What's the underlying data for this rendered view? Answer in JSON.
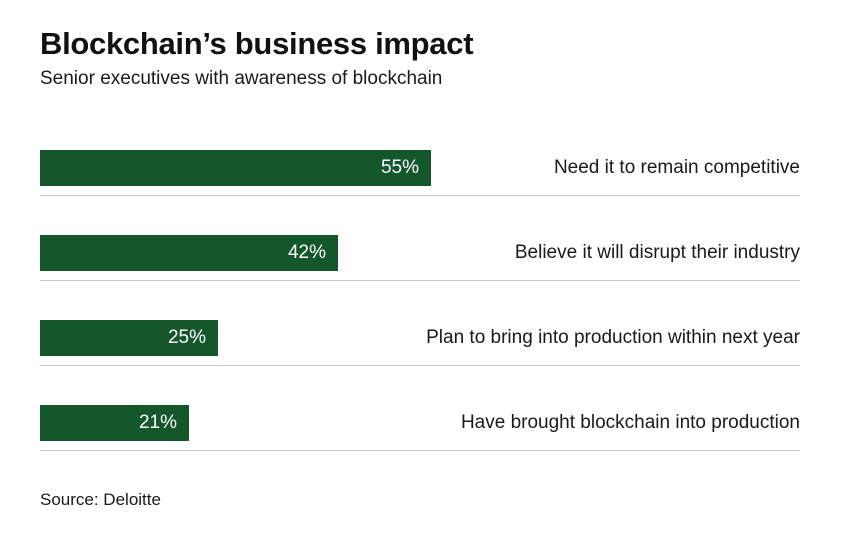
{
  "header": {
    "title": "Blockchain’s business impact",
    "subtitle": "Senior executives with awareness of blockchain"
  },
  "source": "Source: Deloitte",
  "colors": {
    "bar": "#14572b",
    "divider": "#cccccc",
    "value_text": "#ffffff",
    "label_text": "#1a1a1a"
  },
  "chart_data": {
    "type": "bar",
    "orientation": "horizontal",
    "title": "Blockchain’s business impact",
    "subtitle": "Senior executives with awareness of blockchain",
    "source": "Source: Deloitte",
    "categories": [
      "Need it to remain competitive",
      "Believe it will disrupt their industry",
      "Plan to bring into production within next year",
      "Have brought blockchain into production"
    ],
    "values": [
      55,
      42,
      25,
      21
    ],
    "value_labels": [
      "55%",
      "42%",
      "25%",
      "21%"
    ],
    "xlim": [
      0,
      100
    ],
    "grid": false,
    "legend": false,
    "bar_color": "#14572b"
  }
}
